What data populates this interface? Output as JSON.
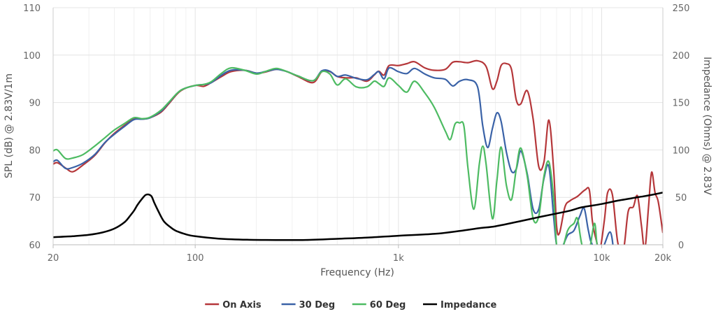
{
  "chart_data": {
    "type": "line",
    "xlabel": "Frequency (Hz)",
    "ylabel": "SPL (dB) @ 2.83V/1m",
    "y2label": "Impedance (Ohms) @ 2.83V",
    "x_scale": "log",
    "xlim": [
      20,
      20000
    ],
    "ylim": [
      60,
      110
    ],
    "y2lim": [
      0,
      250
    ],
    "grid": true,
    "legend": "bottom",
    "x_ticks": [
      {
        "value": 20,
        "label": "20"
      },
      {
        "value": 100,
        "label": "100"
      },
      {
        "value": 1000,
        "label": "1k"
      },
      {
        "value": 10000,
        "label": "10k"
      },
      {
        "value": 20000,
        "label": "20k"
      }
    ],
    "y_ticks": [
      "60",
      "70",
      "80",
      "90",
      "100",
      "110"
    ],
    "y2_ticks": [
      "0",
      "50",
      "100",
      "150",
      "200",
      "250"
    ],
    "series": [
      {
        "name": "On Axis",
        "color": "#b5373a",
        "axis": "left",
        "points": [
          [
            20,
            77
          ],
          [
            21,
            77.3
          ],
          [
            23,
            76.2
          ],
          [
            25,
            75.4
          ],
          [
            28,
            76.8
          ],
          [
            32,
            78.8
          ],
          [
            36,
            81.5
          ],
          [
            40,
            83.5
          ],
          [
            45,
            85.2
          ],
          [
            50,
            86.6
          ],
          [
            55,
            86.5
          ],
          [
            60,
            86.8
          ],
          [
            68,
            88
          ],
          [
            75,
            90
          ],
          [
            85,
            92.5
          ],
          [
            100,
            93.6
          ],
          [
            110,
            93.4
          ],
          [
            120,
            94.2
          ],
          [
            135,
            95.5
          ],
          [
            150,
            96.5
          ],
          [
            175,
            96.8
          ],
          [
            200,
            96.2
          ],
          [
            220,
            96.4
          ],
          [
            250,
            97
          ],
          [
            280,
            96.6
          ],
          [
            320,
            95.5
          ],
          [
            380,
            94.2
          ],
          [
            420,
            96.5
          ],
          [
            460,
            96.5
          ],
          [
            500,
            95.5
          ],
          [
            550,
            95.2
          ],
          [
            620,
            95.2
          ],
          [
            700,
            94.5
          ],
          [
            760,
            95.8
          ],
          [
            800,
            96.6
          ],
          [
            850,
            95.8
          ],
          [
            900,
            97.8
          ],
          [
            1000,
            97.8
          ],
          [
            1100,
            98.2
          ],
          [
            1200,
            98.6
          ],
          [
            1350,
            97.3
          ],
          [
            1500,
            96.8
          ],
          [
            1700,
            97
          ],
          [
            1850,
            98.5
          ],
          [
            2000,
            98.6
          ],
          [
            2200,
            98.4
          ],
          [
            2450,
            98.8
          ],
          [
            2700,
            97.6
          ],
          [
            2900,
            92.9
          ],
          [
            3050,
            94.5
          ],
          [
            3200,
            97.8
          ],
          [
            3400,
            98.2
          ],
          [
            3600,
            97
          ],
          [
            3800,
            90.5
          ],
          [
            4000,
            89.7
          ],
          [
            4300,
            92.5
          ],
          [
            4600,
            86.5
          ],
          [
            4900,
            76.5
          ],
          [
            5200,
            77.5
          ],
          [
            5500,
            86.3
          ],
          [
            5800,
            76
          ],
          [
            6000,
            64
          ],
          [
            6200,
            62.5
          ],
          [
            6600,
            68
          ],
          [
            7000,
            69.3
          ],
          [
            7600,
            70.2
          ],
          [
            8300,
            71.6
          ],
          [
            8700,
            71.5
          ],
          [
            9000,
            65
          ],
          [
            9400,
            61
          ],
          [
            9800,
            59
          ],
          [
            10300,
            65
          ],
          [
            10700,
            71
          ],
          [
            11300,
            70.5
          ],
          [
            12000,
            60.5
          ],
          [
            12800,
            59
          ],
          [
            13500,
            67
          ],
          [
            14300,
            68
          ],
          [
            15000,
            70.3
          ],
          [
            15700,
            64
          ],
          [
            16300,
            59
          ],
          [
            17000,
            68
          ],
          [
            17600,
            75.3
          ],
          [
            18300,
            71
          ],
          [
            19000,
            69
          ],
          [
            20000,
            62.5
          ]
        ]
      },
      {
        "name": "30 Deg",
        "color": "#3a62a7",
        "axis": "left",
        "points": [
          [
            20,
            77.5
          ],
          [
            21,
            77.8
          ],
          [
            23,
            76.1
          ],
          [
            25,
            76.3
          ],
          [
            28,
            77.2
          ],
          [
            32,
            79
          ],
          [
            36,
            81.6
          ],
          [
            40,
            83.3
          ],
          [
            45,
            85
          ],
          [
            50,
            86.4
          ],
          [
            55,
            86.5
          ],
          [
            60,
            86.8
          ],
          [
            68,
            88.2
          ],
          [
            75,
            90.2
          ],
          [
            85,
            92.6
          ],
          [
            100,
            93.6
          ],
          [
            110,
            93.8
          ],
          [
            120,
            94.2
          ],
          [
            135,
            95.8
          ],
          [
            150,
            96.8
          ],
          [
            175,
            96.8
          ],
          [
            200,
            96.2
          ],
          [
            220,
            96.5
          ],
          [
            250,
            97
          ],
          [
            280,
            96.6
          ],
          [
            320,
            95.6
          ],
          [
            380,
            94.6
          ],
          [
            420,
            96.7
          ],
          [
            460,
            96.6
          ],
          [
            500,
            95.5
          ],
          [
            550,
            95.8
          ],
          [
            620,
            95.1
          ],
          [
            700,
            94.8
          ],
          [
            760,
            95.9
          ],
          [
            800,
            96.5
          ],
          [
            850,
            95
          ],
          [
            900,
            97.3
          ],
          [
            1000,
            96.5
          ],
          [
            1100,
            96.1
          ],
          [
            1200,
            97.2
          ],
          [
            1350,
            96
          ],
          [
            1500,
            95.2
          ],
          [
            1700,
            94.9
          ],
          [
            1850,
            93.5
          ],
          [
            2000,
            94.5
          ],
          [
            2200,
            94.8
          ],
          [
            2450,
            93.3
          ],
          [
            2600,
            85
          ],
          [
            2750,
            80.5
          ],
          [
            2900,
            84.5
          ],
          [
            3050,
            87.8
          ],
          [
            3200,
            86
          ],
          [
            3400,
            79.5
          ],
          [
            3600,
            75.5
          ],
          [
            3800,
            76
          ],
          [
            4000,
            79.8
          ],
          [
            4300,
            75
          ],
          [
            4600,
            67.5
          ],
          [
            4900,
            67.5
          ],
          [
            5200,
            74
          ],
          [
            5500,
            76.5
          ],
          [
            5800,
            66
          ],
          [
            6000,
            60
          ],
          [
            6300,
            59
          ],
          [
            6800,
            62
          ],
          [
            7300,
            63
          ],
          [
            7800,
            66
          ],
          [
            8200,
            67.7
          ],
          [
            8600,
            63
          ],
          [
            9000,
            60
          ],
          [
            10000,
            59
          ],
          [
            11000,
            62.7
          ],
          [
            11500,
            58
          ]
        ]
      },
      {
        "name": "60 Deg",
        "color": "#4dbb62",
        "axis": "left",
        "points": [
          [
            20,
            79.8
          ],
          [
            21,
            80
          ],
          [
            23,
            78.2
          ],
          [
            25,
            78.3
          ],
          [
            28,
            79
          ],
          [
            32,
            80.8
          ],
          [
            36,
            82.6
          ],
          [
            40,
            84.2
          ],
          [
            45,
            85.6
          ],
          [
            50,
            86.8
          ],
          [
            55,
            86.6
          ],
          [
            60,
            86.9
          ],
          [
            68,
            88.4
          ],
          [
            75,
            90.3
          ],
          [
            85,
            92.6
          ],
          [
            100,
            93.6
          ],
          [
            110,
            93.8
          ],
          [
            120,
            94.4
          ],
          [
            135,
            96.2
          ],
          [
            150,
            97.3
          ],
          [
            175,
            96.8
          ],
          [
            200,
            96
          ],
          [
            220,
            96.5
          ],
          [
            250,
            97.2
          ],
          [
            280,
            96.6
          ],
          [
            320,
            95.6
          ],
          [
            380,
            94.6
          ],
          [
            420,
            96.5
          ],
          [
            460,
            96
          ],
          [
            500,
            93.7
          ],
          [
            550,
            95
          ],
          [
            620,
            93.3
          ],
          [
            700,
            93.3
          ],
          [
            760,
            94.5
          ],
          [
            800,
            94
          ],
          [
            850,
            93.4
          ],
          [
            900,
            95.2
          ],
          [
            1000,
            93.6
          ],
          [
            1100,
            92.2
          ],
          [
            1200,
            94.5
          ],
          [
            1350,
            92
          ],
          [
            1500,
            89
          ],
          [
            1700,
            84
          ],
          [
            1800,
            82.2
          ],
          [
            1900,
            85.5
          ],
          [
            2000,
            85.7
          ],
          [
            2100,
            85
          ],
          [
            2200,
            76
          ],
          [
            2350,
            67.5
          ],
          [
            2500,
            77
          ],
          [
            2600,
            80.8
          ],
          [
            2700,
            77
          ],
          [
            2900,
            65.5
          ],
          [
            3050,
            73.5
          ],
          [
            3200,
            80.6
          ],
          [
            3400,
            72.5
          ],
          [
            3600,
            69.5
          ],
          [
            3800,
            76
          ],
          [
            4000,
            80.4
          ],
          [
            4300,
            74.5
          ],
          [
            4600,
            65.5
          ],
          [
            4900,
            66
          ],
          [
            5200,
            74.5
          ],
          [
            5500,
            77.5
          ],
          [
            5800,
            70
          ],
          [
            6000,
            60
          ],
          [
            6300,
            58
          ],
          [
            6800,
            63
          ],
          [
            7300,
            64.5
          ],
          [
            7600,
            65.5
          ],
          [
            8000,
            60
          ],
          [
            8600,
            58
          ],
          [
            9200,
            64.5
          ],
          [
            9500,
            60
          ],
          [
            10000,
            57
          ]
        ]
      },
      {
        "name": "Impedance",
        "color": "#000000",
        "axis": "right",
        "points": [
          [
            20,
            8
          ],
          [
            25,
            9
          ],
          [
            30,
            10.5
          ],
          [
            35,
            13
          ],
          [
            40,
            17
          ],
          [
            45,
            24
          ],
          [
            48,
            31
          ],
          [
            50,
            36
          ],
          [
            52,
            42
          ],
          [
            55,
            49
          ],
          [
            57,
            52.5
          ],
          [
            59,
            53
          ],
          [
            61,
            51
          ],
          [
            63,
            44
          ],
          [
            66,
            35
          ],
          [
            70,
            25
          ],
          [
            75,
            19
          ],
          [
            80,
            15
          ],
          [
            90,
            11
          ],
          [
            100,
            9
          ],
          [
            130,
            6.5
          ],
          [
            180,
            5.3
          ],
          [
            250,
            5
          ],
          [
            350,
            5.1
          ],
          [
            500,
            6.3
          ],
          [
            700,
            7.5
          ],
          [
            1000,
            9.5
          ],
          [
            1500,
            11.5
          ],
          [
            2000,
            14.5
          ],
          [
            2500,
            17.5
          ],
          [
            3000,
            19.5
          ],
          [
            4000,
            25
          ],
          [
            5000,
            29.5
          ],
          [
            6000,
            33
          ],
          [
            7000,
            36
          ],
          [
            8000,
            39.5
          ],
          [
            10000,
            43
          ],
          [
            12000,
            46.5
          ],
          [
            14000,
            49
          ],
          [
            16000,
            51
          ],
          [
            18000,
            53
          ],
          [
            20000,
            55
          ]
        ]
      }
    ]
  }
}
